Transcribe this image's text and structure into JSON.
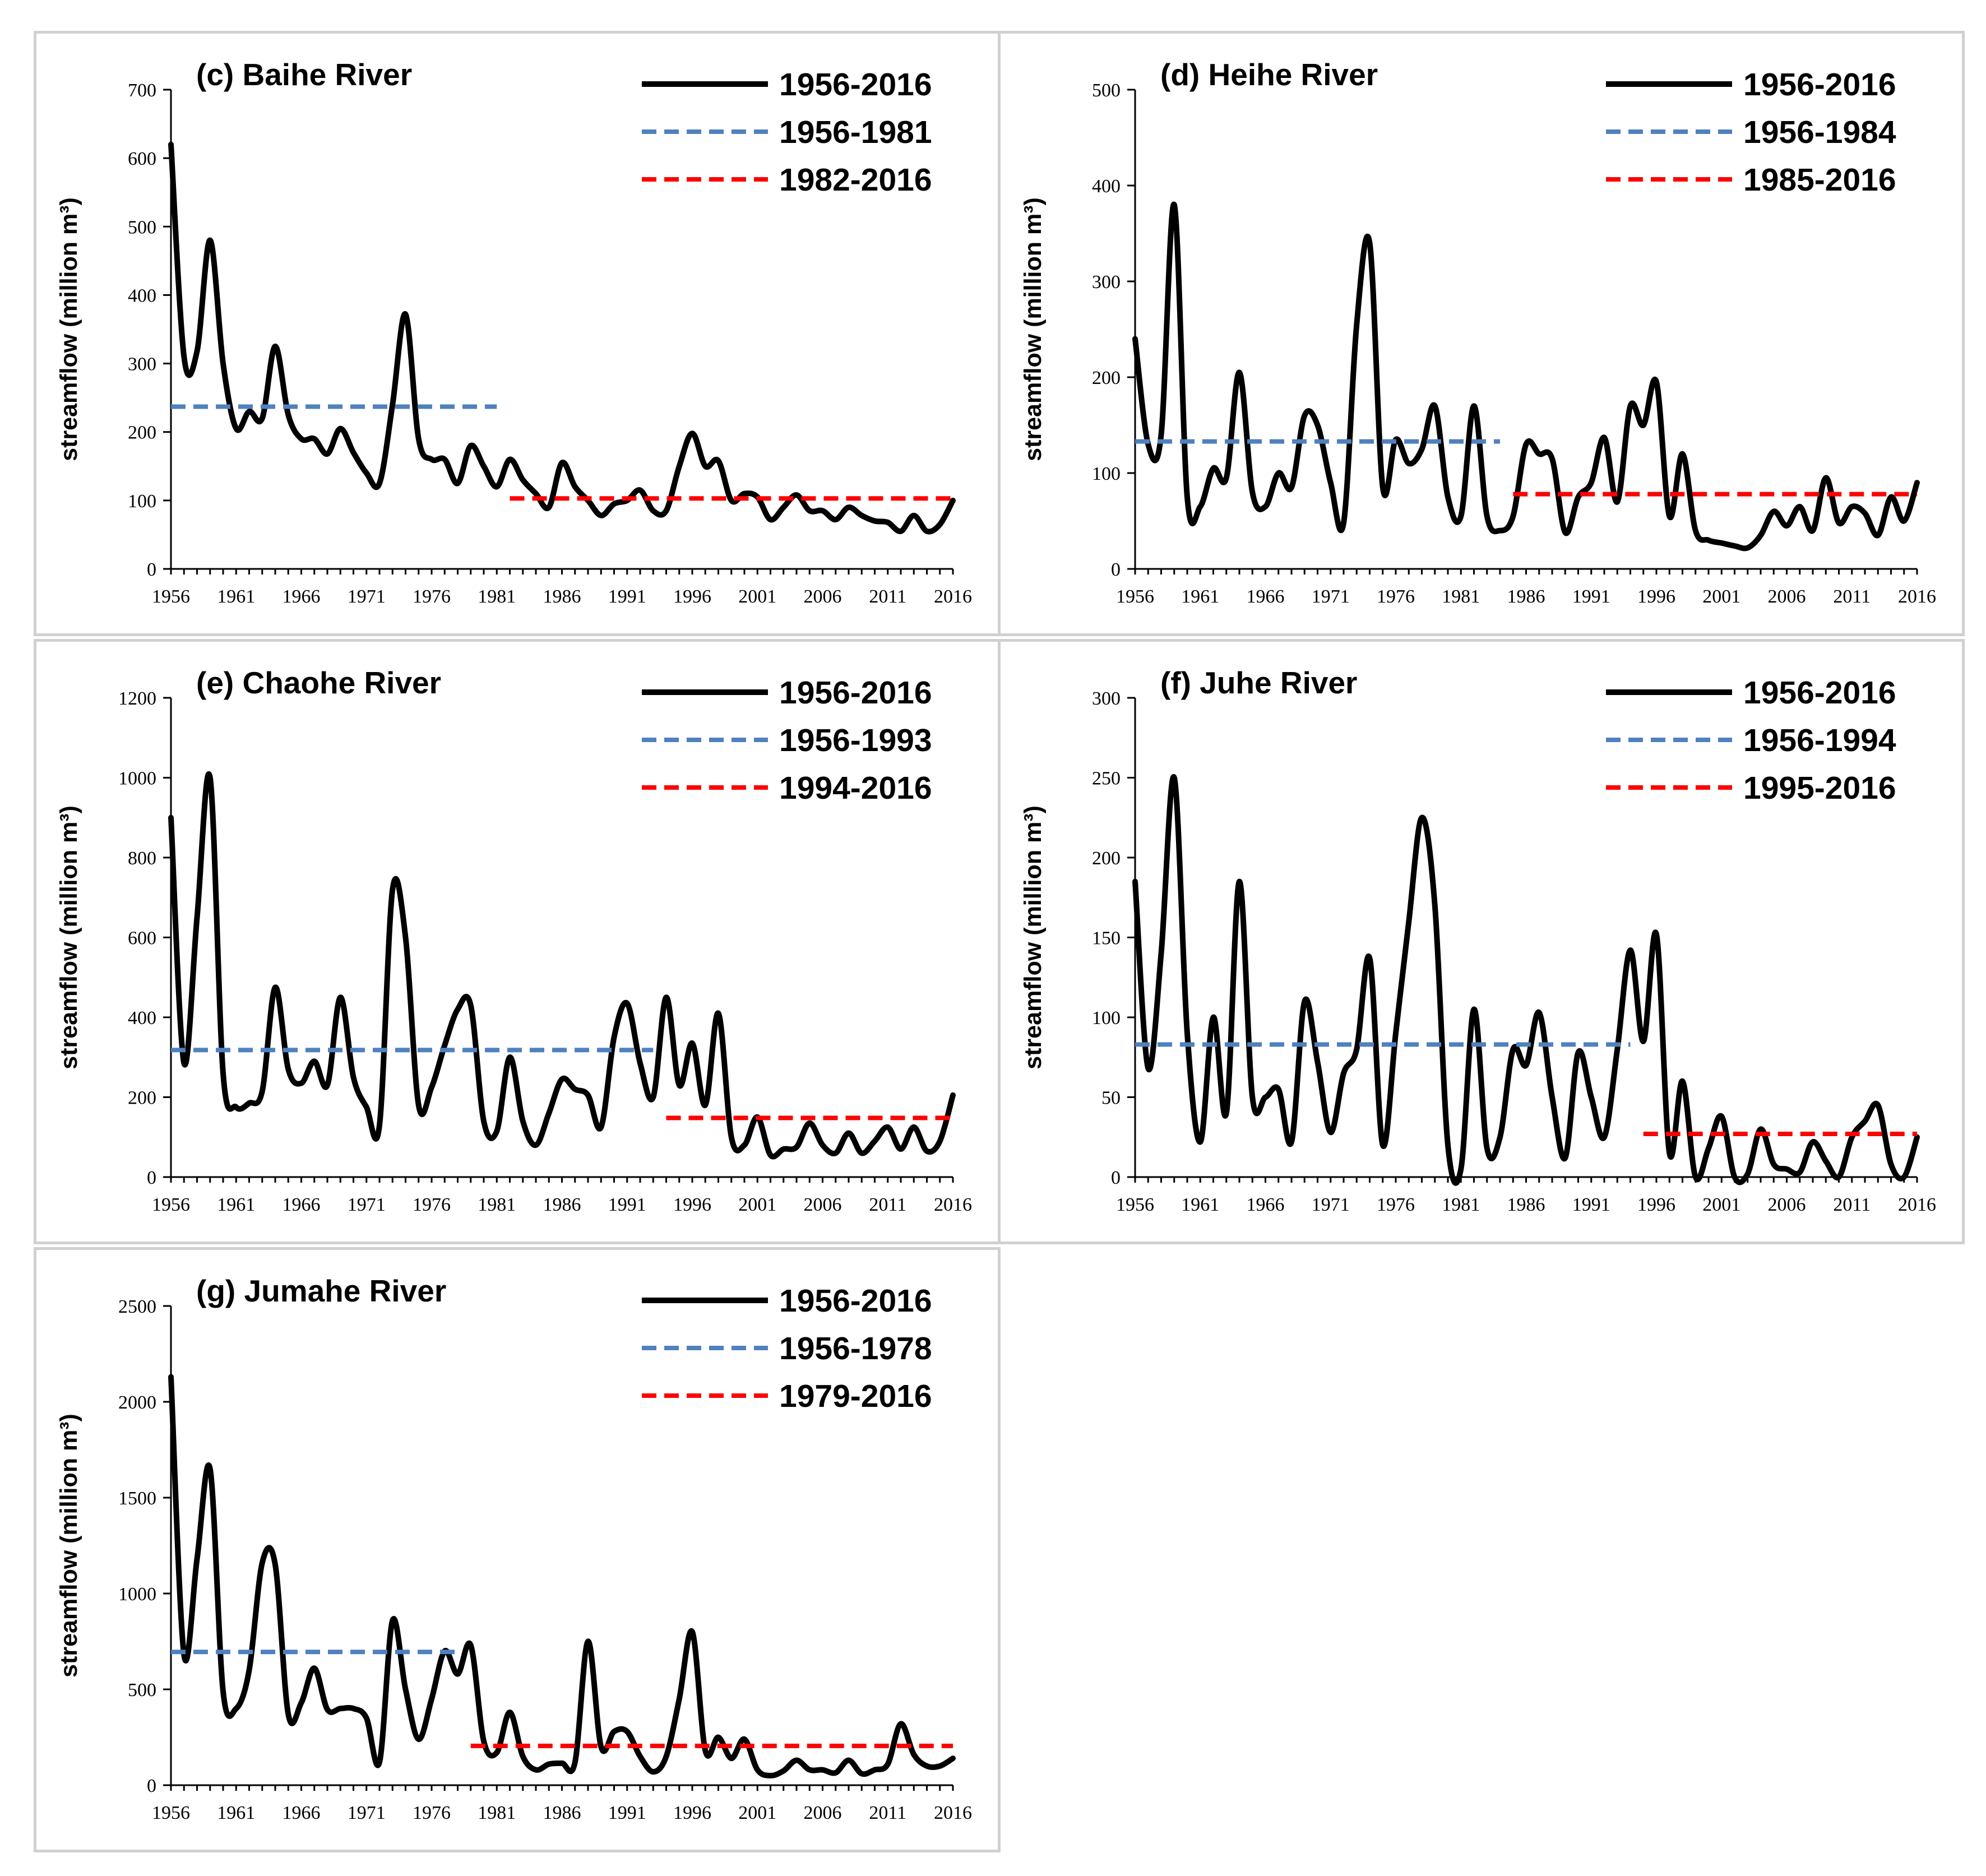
{
  "colors": {
    "observed": "#000000",
    "pre_period": "#4f81bd",
    "post_period": "#ff0000"
  },
  "chart_data": [
    {
      "type": "line",
      "title": "(c) Baihe River",
      "ylabel": "streamflow (million m³)",
      "ylim": [
        0,
        700
      ],
      "yticks": [
        0,
        100,
        200,
        300,
        400,
        500,
        600,
        700
      ],
      "xticks": [
        1956,
        1961,
        1966,
        1971,
        1976,
        1981,
        1986,
        1991,
        1996,
        2001,
        2006,
        2011,
        2016
      ],
      "x_start": 1956,
      "series": [
        {
          "name": "1956-2016",
          "style": "solid",
          "values": [
            620,
            310,
            318,
            480,
            300,
            205,
            230,
            220,
            325,
            225,
            190,
            190,
            168,
            205,
            170,
            140,
            125,
            240,
            372,
            190,
            160,
            160,
            125,
            180,
            150,
            120,
            160,
            130,
            110,
            90,
            155,
            120,
            100,
            78,
            95,
            100,
            115,
            85,
            85,
            150,
            198,
            150,
            158,
            100,
            110,
            105,
            72,
            90,
            108,
            85,
            85,
            72,
            90,
            78,
            70,
            68,
            55,
            78,
            55,
            65,
            100
          ]
        },
        {
          "name": "1956-1981",
          "style": "dashed",
          "x_range": [
            1956,
            1981
          ],
          "value": 237
        },
        {
          "name": "1982-2016",
          "style": "dashed",
          "x_range": [
            1982,
            2016
          ],
          "value": 103
        }
      ]
    },
    {
      "type": "line",
      "title": "(d) Heihe River",
      "ylabel": "streamflow (million m³)",
      "ylim": [
        0,
        500
      ],
      "yticks": [
        0,
        100,
        200,
        300,
        400,
        500
      ],
      "xticks": [
        1956,
        1961,
        1966,
        1971,
        1976,
        1981,
        1986,
        1991,
        1996,
        2001,
        2006,
        2011,
        2016
      ],
      "x_start": 1956,
      "series": [
        {
          "name": "1956-2016",
          "style": "solid",
          "values": [
            240,
            130,
            140,
            380,
            75,
            65,
            105,
            95,
            205,
            80,
            65,
            100,
            85,
            160,
            150,
            90,
            48,
            255,
            340,
            85,
            135,
            110,
            125,
            170,
            75,
            55,
            170,
            55,
            40,
            55,
            130,
            120,
            115,
            38,
            75,
            90,
            137,
            70,
            170,
            150,
            195,
            55,
            120,
            40,
            30,
            27,
            24,
            22,
            35,
            60,
            45,
            65,
            40,
            95,
            48,
            65,
            58,
            35,
            75,
            50,
            90
          ]
        },
        {
          "name": "1956-1984",
          "style": "dashed",
          "x_range": [
            1956,
            1984
          ],
          "value": 133
        },
        {
          "name": "1985-2016",
          "style": "dashed",
          "x_range": [
            1985,
            2016
          ],
          "value": 78
        }
      ]
    },
    {
      "type": "line",
      "title": "(e) Chaohe River",
      "ylabel": "streamflow (million m³)",
      "ylim": [
        0,
        1200
      ],
      "yticks": [
        0,
        200,
        400,
        600,
        800,
        1000,
        1200
      ],
      "xticks": [
        1956,
        1961,
        1966,
        1971,
        1976,
        1981,
        1986,
        1991,
        1996,
        2001,
        2006,
        2011,
        2016
      ],
      "x_start": 1956,
      "series": [
        {
          "name": "1956-2016",
          "style": "solid",
          "values": [
            900,
            285,
            650,
            1000,
            260,
            175,
            185,
            215,
            475,
            270,
            235,
            290,
            230,
            450,
            250,
            175,
            130,
            720,
            600,
            180,
            225,
            330,
            420,
            430,
            140,
            115,
            300,
            140,
            80,
            160,
            245,
            220,
            205,
            125,
            350,
            435,
            285,
            200,
            450,
            230,
            335,
            180,
            410,
            100,
            80,
            150,
            55,
            70,
            75,
            135,
            80,
            60,
            110,
            60,
            90,
            125,
            70,
            125,
            65,
            90,
            205
          ]
        },
        {
          "name": "1956-1993",
          "style": "dashed",
          "x_range": [
            1956,
            1993
          ],
          "value": 318
        },
        {
          "name": "1994-2016",
          "style": "dashed",
          "x_range": [
            1994,
            2016
          ],
          "value": 148
        }
      ]
    },
    {
      "type": "line",
      "title": "(f) Juhe River",
      "ylabel": "streamflow (million m³)",
      "ylim": [
        0,
        300
      ],
      "yticks": [
        0,
        50,
        100,
        150,
        200,
        250,
        300
      ],
      "xticks": [
        1956,
        1961,
        1966,
        1971,
        1976,
        1981,
        1986,
        1991,
        1996,
        2001,
        2006,
        2011,
        2016
      ],
      "x_start": 1956,
      "series": [
        {
          "name": "1956-2016",
          "style": "solid",
          "values": [
            185,
            68,
            140,
            250,
            90,
            22,
            100,
            40,
            185,
            50,
            50,
            55,
            22,
            110,
            72,
            28,
            65,
            80,
            137,
            20,
            90,
            160,
            225,
            170,
            20,
            5,
            105,
            18,
            25,
            80,
            70,
            103,
            50,
            12,
            78,
            50,
            25,
            80,
            142,
            85,
            152,
            15,
            60,
            0,
            18,
            38,
            0,
            2,
            30,
            8,
            5,
            3,
            22,
            10,
            0,
            25,
            35,
            45,
            8,
            0,
            25
          ]
        },
        {
          "name": "1956-1994",
          "style": "dashed",
          "x_range": [
            1956,
            1994
          ],
          "value": 83
        },
        {
          "name": "1995-2016",
          "style": "dashed",
          "x_range": [
            1995,
            2016
          ],
          "value": 27
        }
      ]
    },
    {
      "type": "line",
      "title": "(g) Jumahe River",
      "ylabel": "streamflow (million m³)",
      "ylim": [
        0,
        2500
      ],
      "yticks": [
        0,
        500,
        1000,
        1500,
        2000,
        2500
      ],
      "xticks": [
        1956,
        1961,
        1966,
        1971,
        1976,
        1981,
        1986,
        1991,
        1996,
        2001,
        2006,
        2011,
        2016
      ],
      "x_start": 1956,
      "series": [
        {
          "name": "1956-2016",
          "style": "solid",
          "values": [
            2130,
            680,
            1180,
            1650,
            490,
            400,
            600,
            1160,
            1150,
            370,
            430,
            610,
            395,
            400,
            400,
            350,
            120,
            860,
            500,
            240,
            450,
            700,
            580,
            730,
            230,
            170,
            380,
            150,
            80,
            110,
            115,
            120,
            750,
            200,
            280,
            280,
            150,
            70,
            150,
            450,
            800,
            180,
            250,
            140,
            240,
            80,
            50,
            75,
            130,
            80,
            80,
            65,
            130,
            60,
            80,
            110,
            320,
            160,
            100,
            100,
            140
          ]
        },
        {
          "name": "1956-1978",
          "style": "dashed",
          "x_range": [
            1956,
            1978
          ],
          "value": 695
        },
        {
          "name": "1979-2016",
          "style": "dashed",
          "x_range": [
            1979,
            2016
          ],
          "value": 205
        }
      ]
    }
  ]
}
